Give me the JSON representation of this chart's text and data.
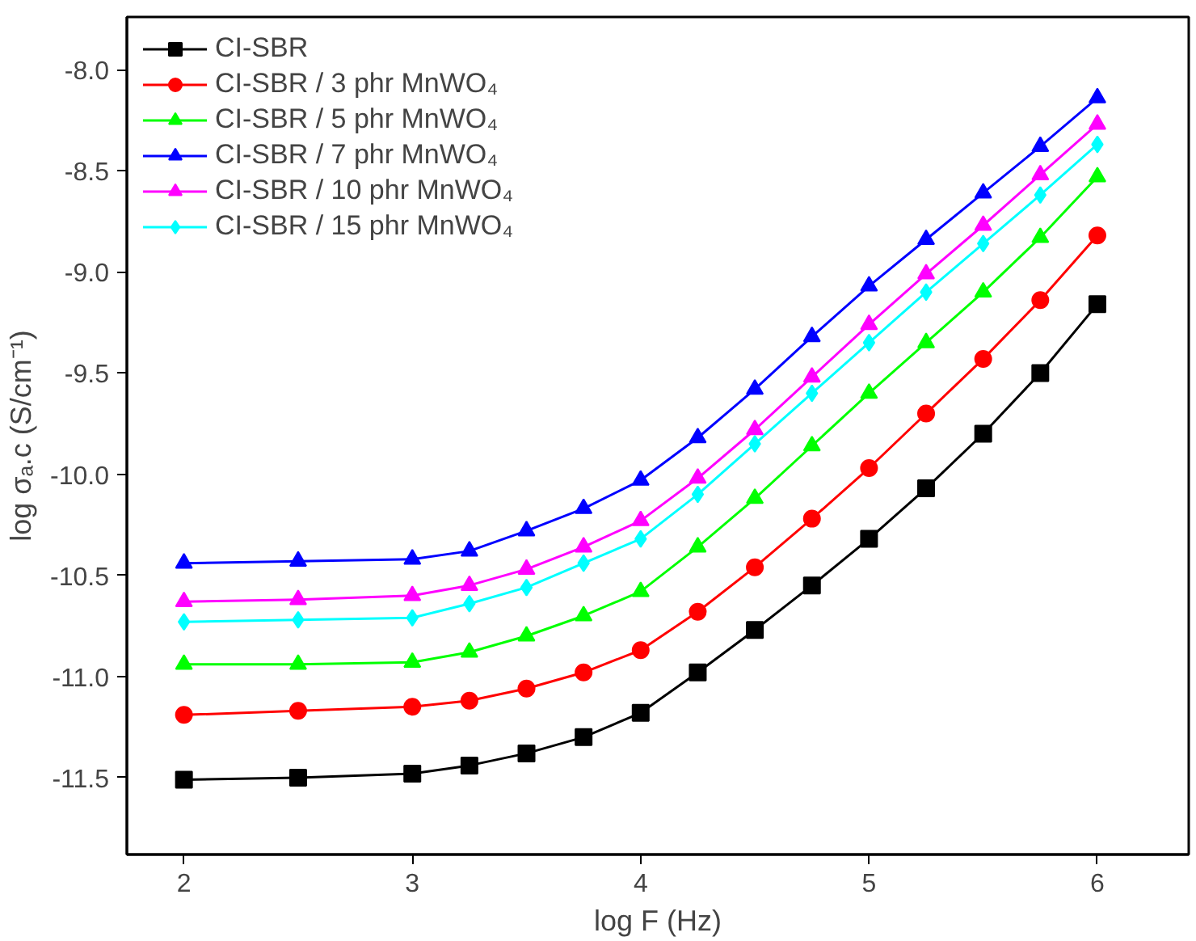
{
  "chart_data": {
    "type": "line",
    "xlabel": "log F (Hz)",
    "ylabel": "log σₐ.c (S/cm⁻¹)",
    "xlim": [
      1.75,
      6.4
    ],
    "ylim": [
      -11.88,
      -7.74
    ],
    "xticks": [
      2,
      3,
      4,
      5,
      6
    ],
    "yticks": [
      {
        "value": -11.5,
        "label": "-11.5"
      },
      {
        "value": -11,
        "label": "-11.0"
      },
      {
        "value": -10.5,
        "label": "-10.5"
      },
      {
        "value": -10,
        "label": "-10.0"
      },
      {
        "value": -9.5,
        "label": "-9.5"
      },
      {
        "value": -9,
        "label": "-9.0"
      },
      {
        "value": -8.5,
        "label": "-8.5"
      },
      {
        "value": -8,
        "label": "-8.0"
      }
    ],
    "grid": false,
    "legend": "top left",
    "line_style": "solid",
    "x": [
      2,
      2.5,
      3,
      3.25,
      3.5,
      3.75,
      4,
      4.25,
      4.5,
      4.75,
      5,
      5.25,
      5.5,
      5.75,
      6
    ],
    "series": [
      {
        "name": "CI-SBR",
        "color": "#000000",
        "marker": "square",
        "values": [
          -11.51,
          -11.5,
          -11.48,
          -11.44,
          -11.38,
          -11.3,
          -11.18,
          -10.98,
          -10.77,
          -10.55,
          -10.32,
          -10.07,
          -9.8,
          -9.5,
          -9.16
        ]
      },
      {
        "name": "CI-SBR / 3 phr MnWO₄",
        "color": "#ff0000",
        "marker": "circle",
        "values": [
          -11.19,
          -11.17,
          -11.15,
          -11.12,
          -11.06,
          -10.98,
          -10.87,
          -10.68,
          -10.46,
          -10.22,
          -9.97,
          -9.7,
          -9.43,
          -9.14,
          -8.82
        ]
      },
      {
        "name": "CI-SBR / 5 phr MnWO₄",
        "color": "#00ff00",
        "marker": "triangle",
        "values": [
          -10.94,
          -10.94,
          -10.93,
          -10.88,
          -10.8,
          -10.7,
          -10.58,
          -10.36,
          -10.12,
          -9.86,
          -9.6,
          -9.35,
          -9.1,
          -8.83,
          -8.53
        ]
      },
      {
        "name": "CI-SBR / 7 phr MnWO₄",
        "color": "#0000ff",
        "marker": "triangle",
        "values": [
          -10.44,
          -10.43,
          -10.42,
          -10.38,
          -10.28,
          -10.17,
          -10.03,
          -9.82,
          -9.58,
          -9.32,
          -9.07,
          -8.84,
          -8.61,
          -8.38,
          -8.14
        ]
      },
      {
        "name": "CI-SBR / 10 phr MnWO₄",
        "color": "#ff00ff",
        "marker": "triangle",
        "values": [
          -10.63,
          -10.62,
          -10.6,
          -10.55,
          -10.47,
          -10.36,
          -10.23,
          -10.02,
          -9.78,
          -9.52,
          -9.26,
          -9.01,
          -8.77,
          -8.52,
          -8.27
        ]
      },
      {
        "name": "CI-SBR / 15 phr MnWO₄",
        "color": "#00ffff",
        "marker": "diamond",
        "values": [
          -10.73,
          -10.72,
          -10.71,
          -10.64,
          -10.56,
          -10.44,
          -10.32,
          -10.1,
          -9.85,
          -9.6,
          -9.35,
          -9.1,
          -8.86,
          -8.62,
          -8.37
        ]
      }
    ]
  }
}
